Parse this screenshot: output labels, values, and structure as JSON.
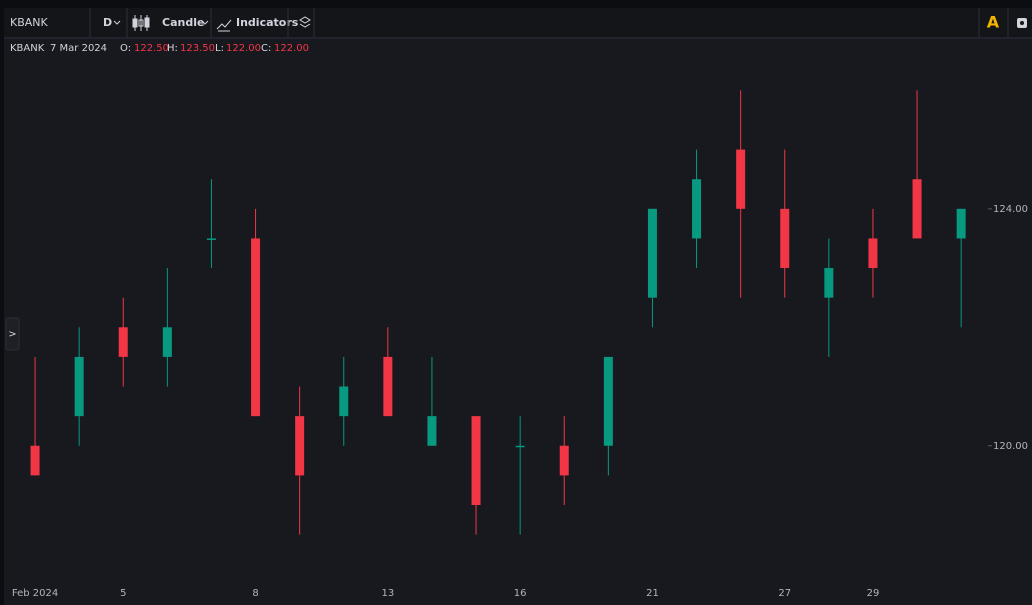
{
  "toolbar": {
    "symbol": "KBANK",
    "interval": "D",
    "chart_style": "Candle",
    "indicators": "Indicators",
    "alert_badge": "A"
  },
  "sidebar_toggle": ">",
  "legend": {
    "symbol": "KBANK",
    "date": "7 Mar 2024",
    "open_label": "O:",
    "open": "122.50",
    "high_label": "H:",
    "high": "123.50",
    "low_label": "L:",
    "low": "122.00",
    "close_label": "C:",
    "close": "122.00"
  },
  "chart_data": {
    "type": "candlestick",
    "categories": [
      "Feb 2024",
      null,
      "5",
      null,
      null,
      "8",
      null,
      null,
      "13",
      null,
      null,
      "16",
      null,
      null,
      "21",
      null,
      null,
      "27",
      null,
      "29",
      null,
      null
    ],
    "open": [
      120,
      120.5,
      122,
      121.5,
      123.5,
      123.5,
      120.5,
      120.5,
      121.5,
      120,
      120.5,
      120,
      120,
      120,
      122.5,
      123.5,
      125,
      124,
      122.5,
      123.5,
      124.5,
      123.5
    ],
    "high": [
      121.5,
      122,
      122.5,
      123,
      124.5,
      124,
      121,
      121.5,
      122,
      121.5,
      120.5,
      120.5,
      120.5,
      121.5,
      124,
      125,
      126,
      125,
      123.5,
      124,
      126,
      124
    ],
    "low": [
      119.5,
      120,
      121,
      121,
      123,
      120.5,
      118.5,
      120,
      120.5,
      120,
      118.5,
      118.5,
      119,
      119.5,
      122,
      123,
      122.5,
      122.5,
      121.5,
      122.5,
      123.5,
      122
    ],
    "close": [
      119.5,
      121.5,
      121.5,
      122,
      123.5,
      120.5,
      119.5,
      121,
      120.5,
      120.5,
      119,
      120,
      119.5,
      121.5,
      124,
      124.5,
      124,
      123,
      123,
      123,
      123.5,
      124
    ],
    "up_color": "#089981",
    "down_color": "#f23645",
    "ylim": [
      117.7,
      126.85
    ],
    "yticks": [
      {
        "value": 120,
        "label": "120.00"
      },
      {
        "value": 124,
        "label": "124.00"
      }
    ],
    "grid": false
  }
}
